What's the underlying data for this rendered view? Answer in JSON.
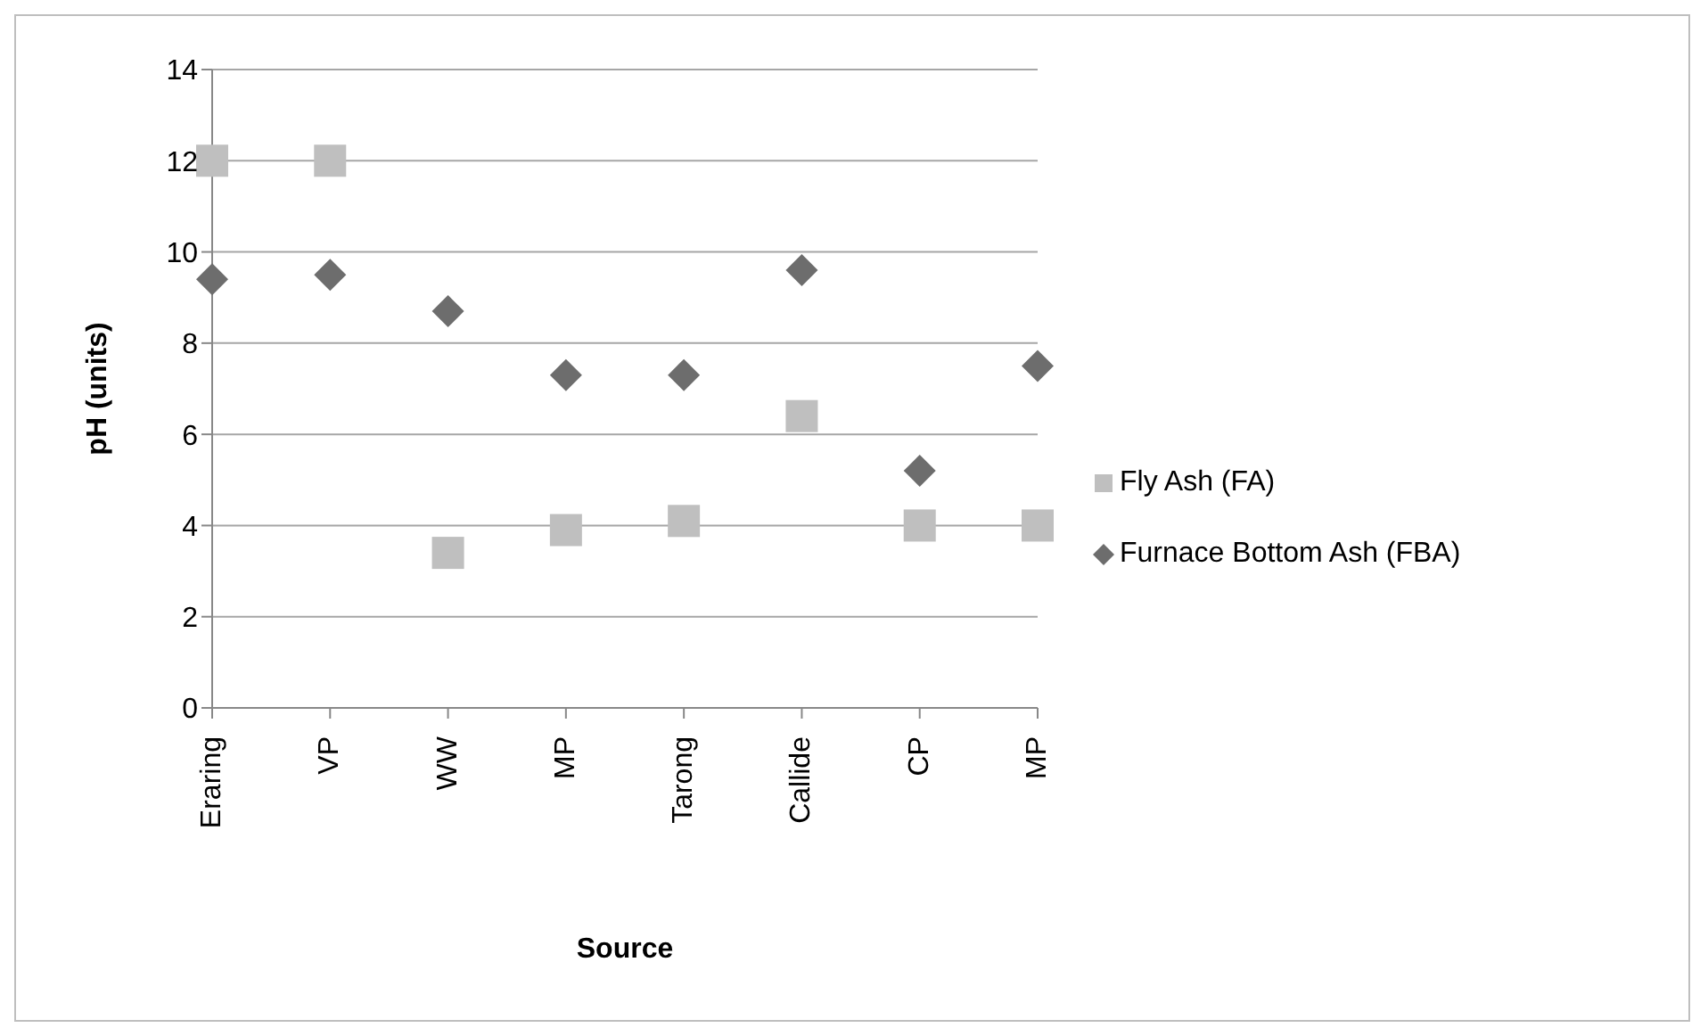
{
  "chart_data": {
    "type": "scatter",
    "xlabel": "Source",
    "ylabel": "pH (units)",
    "categories": [
      "Eraring",
      "VP",
      "WW",
      "MP",
      "Tarong",
      "Callide",
      "CP",
      "MP"
    ],
    "series": [
      {
        "name": "Fly Ash (FA)",
        "color": "#bfbfbf",
        "marker": "square",
        "values": [
          12,
          12,
          3.4,
          3.9,
          4.1,
          6.4,
          4.0,
          4.0
        ]
      },
      {
        "name": "Furnace Bottom Ash (FBA)",
        "color": "#6d6d6d",
        "marker": "diamond",
        "values": [
          9.4,
          9.5,
          8.7,
          7.3,
          7.3,
          9.6,
          5.2,
          7.5
        ]
      }
    ],
    "ylim": [
      0,
      14
    ],
    "yticks": [
      0,
      2,
      4,
      6,
      8,
      10,
      12,
      14
    ],
    "grid": "y",
    "legend": "right"
  }
}
